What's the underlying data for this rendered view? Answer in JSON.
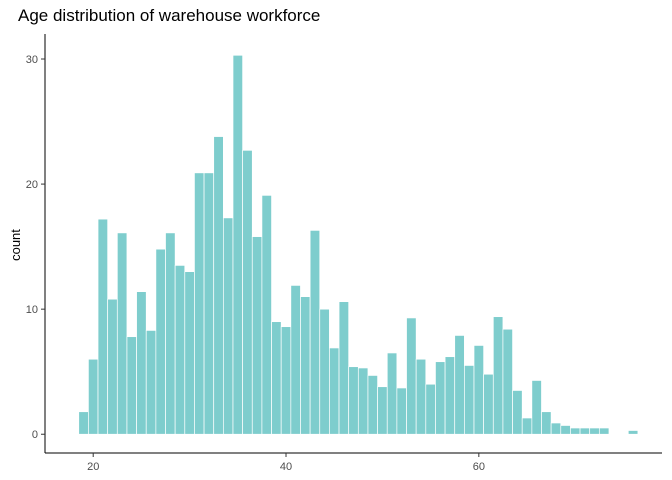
{
  "chart_data": {
    "type": "bar",
    "title": "Age distribution of warehouse workforce",
    "xlabel": "",
    "ylabel": "count",
    "bar_color": "#7ecdcd",
    "bar_edge_color": "#ffffff",
    "grid": false,
    "x": [
      19,
      20,
      21,
      22,
      23,
      24,
      25,
      26,
      27,
      28,
      29,
      30,
      31,
      32,
      33,
      34,
      35,
      36,
      37,
      38,
      39,
      40,
      41,
      42,
      43,
      44,
      45,
      46,
      47,
      48,
      49,
      50,
      51,
      52,
      53,
      54,
      55,
      56,
      57,
      58,
      59,
      60,
      61,
      62,
      63,
      64,
      65,
      66,
      67,
      68,
      69,
      70,
      71,
      72,
      73,
      74,
      75,
      76
    ],
    "values": [
      1.8,
      6,
      17.2,
      10.8,
      16.1,
      7.8,
      11.4,
      8.3,
      14.8,
      16.1,
      13.5,
      13,
      20.9,
      20.9,
      23.8,
      17.3,
      30.3,
      22.7,
      15.8,
      19.1,
      9,
      8.6,
      11.9,
      11,
      16.3,
      10,
      6.9,
      10.6,
      5.4,
      5.3,
      4.7,
      3.8,
      6.5,
      3.7,
      9.3,
      6,
      4,
      5.8,
      6.2,
      7.9,
      5.5,
      7.1,
      4.8,
      9.4,
      8.4,
      3.5,
      1.3,
      4.3,
      1.8,
      0.9,
      0.7,
      0.5,
      0.5,
      0.5,
      0.5,
      0,
      0,
      0.3
    ],
    "xlim": [
      15,
      79
    ],
    "ylim": [
      -1.5,
      32
    ],
    "xticks": [
      20,
      40,
      60
    ],
    "yticks": [
      0,
      10,
      20,
      30
    ]
  }
}
